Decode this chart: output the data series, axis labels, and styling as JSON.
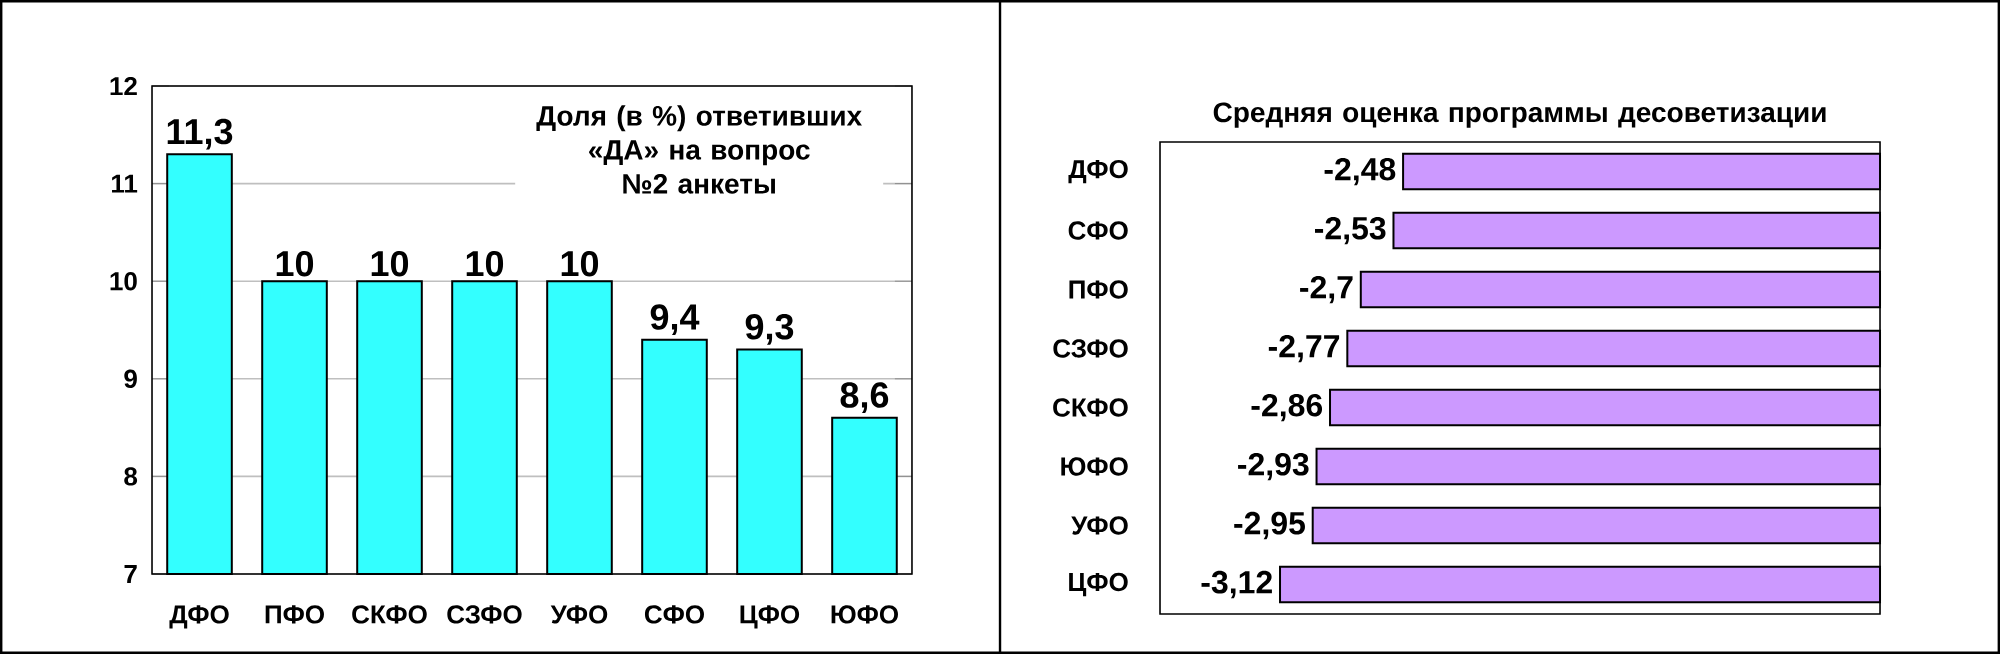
{
  "chart_data": [
    {
      "type": "bar",
      "title": "Доля (в %) ответивших «ДА» на вопрос №2 анкеты",
      "categories": [
        "ДФО",
        "ПФО",
        "СКФО",
        "СЗФО",
        "УФО",
        "СФО",
        "ЦФО",
        "ЮФО"
      ],
      "values": [
        11.3,
        10,
        10,
        10,
        10,
        9.4,
        9.3,
        8.6
      ],
      "value_labels": [
        "11,3",
        "10",
        "10",
        "10",
        "10",
        "9,4",
        "9,3",
        "8,6"
      ],
      "color": "#33ffff",
      "ylim": [
        7,
        12
      ],
      "yticks": [
        7,
        8,
        9,
        10,
        11,
        12
      ],
      "grid": "y"
    },
    {
      "type": "bar",
      "orientation": "horizontal",
      "title": "Средняя оценка программы десоветизации",
      "categories": [
        "ДФО",
        "СФО",
        "ПФО",
        "СЗФО",
        "СКФО",
        "ЮФО",
        "УФО",
        "ЦФО"
      ],
      "values": [
        -2.48,
        -2.53,
        -2.7,
        -2.77,
        -2.86,
        -2.93,
        -2.95,
        -3.12
      ],
      "value_labels": [
        "-2,48",
        "-2,53",
        "-2,7",
        "-2,77",
        "-2,86",
        "-2,93",
        "-2,95",
        "-3,12"
      ],
      "color": "#cc99ff",
      "tick_labels": "y"
    }
  ]
}
